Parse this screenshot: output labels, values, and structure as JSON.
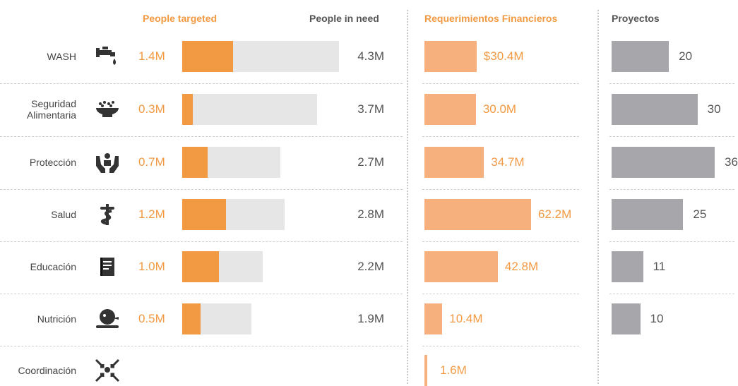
{
  "headers": {
    "people_targeted": "People targeted",
    "people_in_need": "People in need",
    "financial": "Requerimientos Financieros",
    "projects": "Proyectos"
  },
  "colors": {
    "targeted": "#f29a43",
    "in_need": "#e6e6e6",
    "financial": "#f5b07d",
    "projects": "#a7a7ab"
  },
  "chart_data": {
    "type": "bar",
    "categories": [
      "WASH",
      "Seguridad Alimentaria",
      "Protección",
      "Salud",
      "Educación",
      "Nutrición",
      "Coordinación"
    ],
    "series": [
      {
        "name": "People targeted",
        "values": [
          1.4,
          0.3,
          0.7,
          1.2,
          1.0,
          0.5,
          null
        ],
        "labels": [
          "1.4M",
          "0.3M",
          "0.7M",
          "1.2M",
          "1.0M",
          "0.5M",
          ""
        ]
      },
      {
        "name": "People in need",
        "values": [
          4.3,
          3.7,
          2.7,
          2.8,
          2.2,
          1.9,
          null
        ],
        "labels": [
          "4.3M",
          "3.7M",
          "2.7M",
          "2.8M",
          "2.2M",
          "1.9M",
          ""
        ]
      },
      {
        "name": "Requerimientos Financieros",
        "values": [
          30.4,
          30.0,
          34.7,
          62.2,
          42.8,
          10.4,
          1.6
        ],
        "labels": [
          "$30.4M",
          "30.0M",
          "34.7M",
          "62.2M",
          "42.8M",
          "10.4M",
          "1.6M"
        ]
      },
      {
        "name": "Proyectos",
        "values": [
          20,
          30,
          36,
          25,
          11,
          10,
          null
        ],
        "labels": [
          "20",
          "30",
          "36",
          "25",
          "11",
          "10",
          ""
        ]
      }
    ]
  },
  "rows": [
    {
      "label": "WASH",
      "icon": "water-tap-icon"
    },
    {
      "label": "Seguridad\nAlimentaria",
      "icon": "food-bowl-icon"
    },
    {
      "label": "Protección",
      "icon": "protection-hands-icon"
    },
    {
      "label": "Salud",
      "icon": "health-caduceus-icon"
    },
    {
      "label": "Educación",
      "icon": "education-book-icon"
    },
    {
      "label": "Nutrición",
      "icon": "nutrition-child-icon"
    },
    {
      "label": "Coordinación",
      "icon": "coordination-arrows-icon"
    }
  ]
}
